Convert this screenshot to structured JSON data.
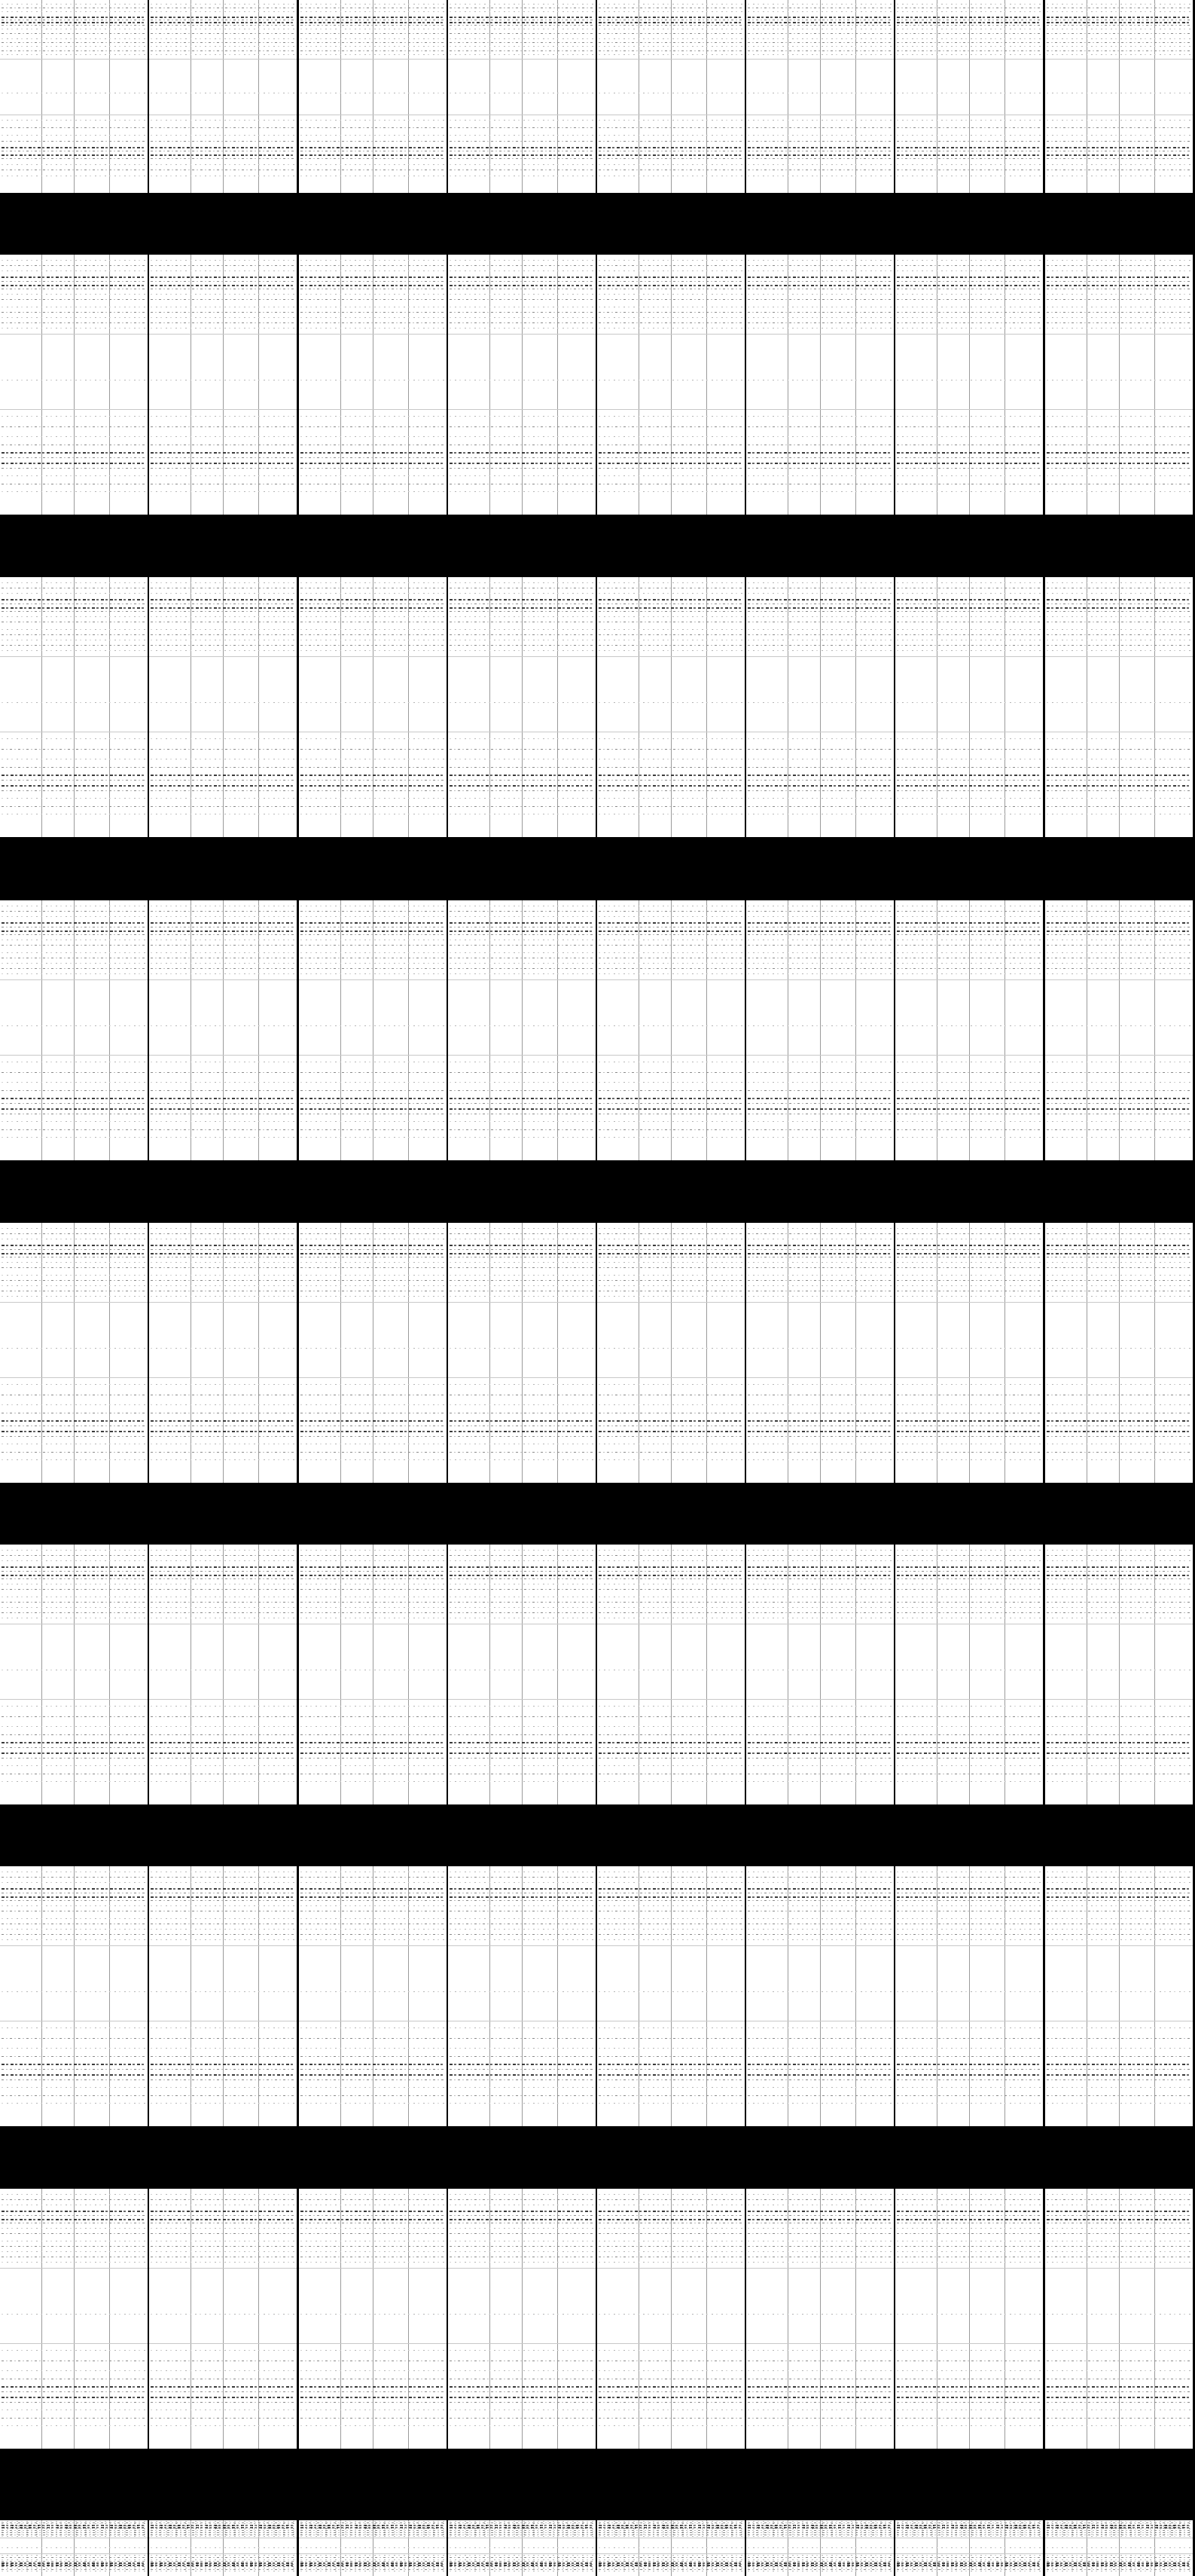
{
  "sheet": {
    "rows": 9,
    "columns": 8,
    "background": "#000000",
    "page_background": "#ffffff",
    "text_color": "#555555"
  }
}
